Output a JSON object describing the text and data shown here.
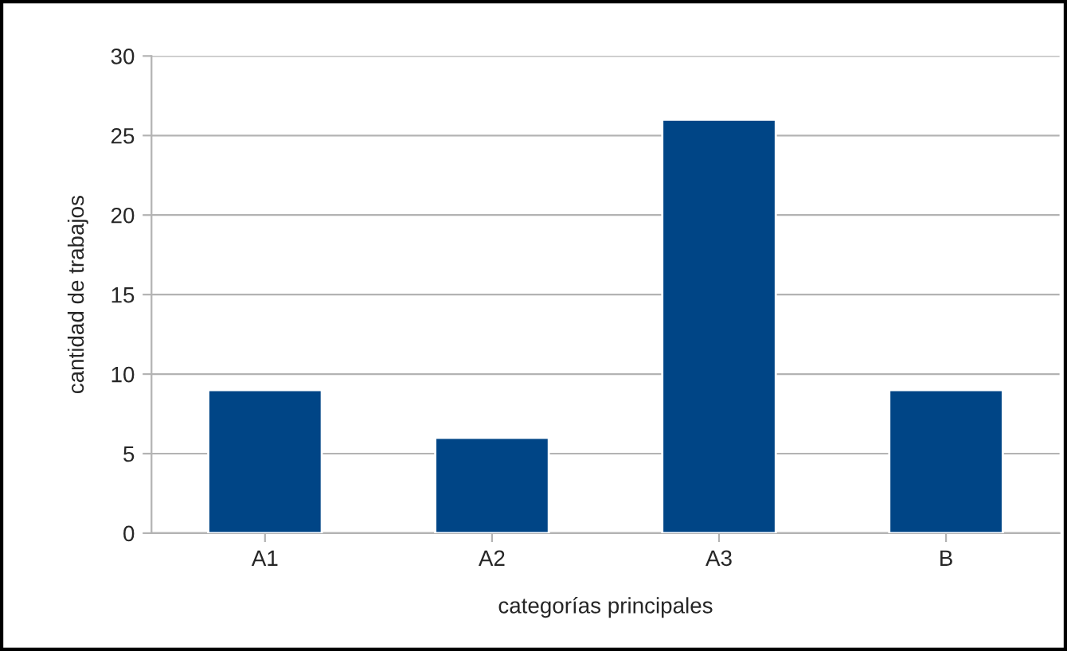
{
  "chart_data": {
    "type": "bar",
    "xlabel": "categorías principales",
    "ylabel": "cantidad de trabajos",
    "categories": [
      "A1",
      "A2",
      "A3",
      "B"
    ],
    "values": [
      9,
      6,
      26,
      9
    ],
    "color": "#004586",
    "ylim": [
      0,
      30
    ],
    "yticks": [
      0,
      5,
      10,
      15,
      20,
      25,
      30
    ],
    "grid": "y"
  }
}
